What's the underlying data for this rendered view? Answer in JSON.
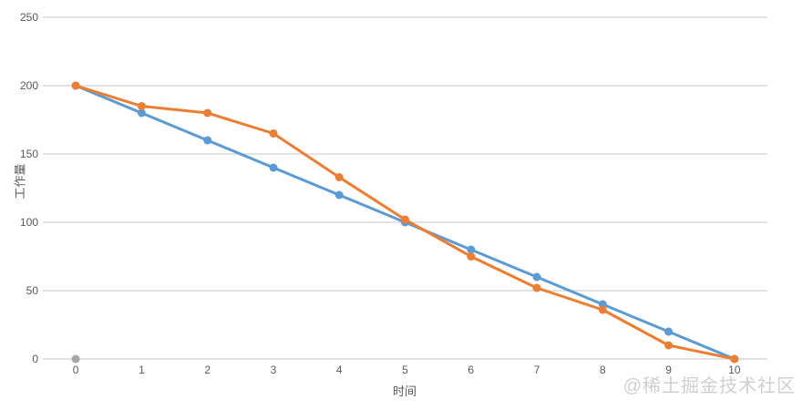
{
  "watermark": "@稀土掘金技术社区",
  "chart_data": {
    "type": "line",
    "x": [
      0,
      1,
      2,
      3,
      4,
      5,
      6,
      7,
      8,
      9,
      10
    ],
    "xlabel": "时间",
    "ylabel": "工作量",
    "ylim": [
      0,
      250
    ],
    "yticks": [
      0,
      50,
      100,
      150,
      200,
      250
    ],
    "grid": "horizontal",
    "legend": "none",
    "background": "#ffffff",
    "gridline_color": "#d9d9d9",
    "tick_color": "#595959",
    "series": [
      {
        "name": "series-blue",
        "color": "#5B9BD5",
        "values": [
          200,
          180,
          160,
          140,
          120,
          100,
          80,
          60,
          40,
          20,
          0
        ]
      },
      {
        "name": "series-orange",
        "color": "#ED7D31",
        "values": [
          200,
          185,
          180,
          165,
          133,
          102,
          75,
          52,
          36,
          10,
          0
        ]
      },
      {
        "name": "series-gray",
        "color": "#A5A5A5",
        "values": [
          0,
          null,
          null,
          null,
          null,
          null,
          null,
          null,
          null,
          null,
          null
        ]
      }
    ]
  }
}
